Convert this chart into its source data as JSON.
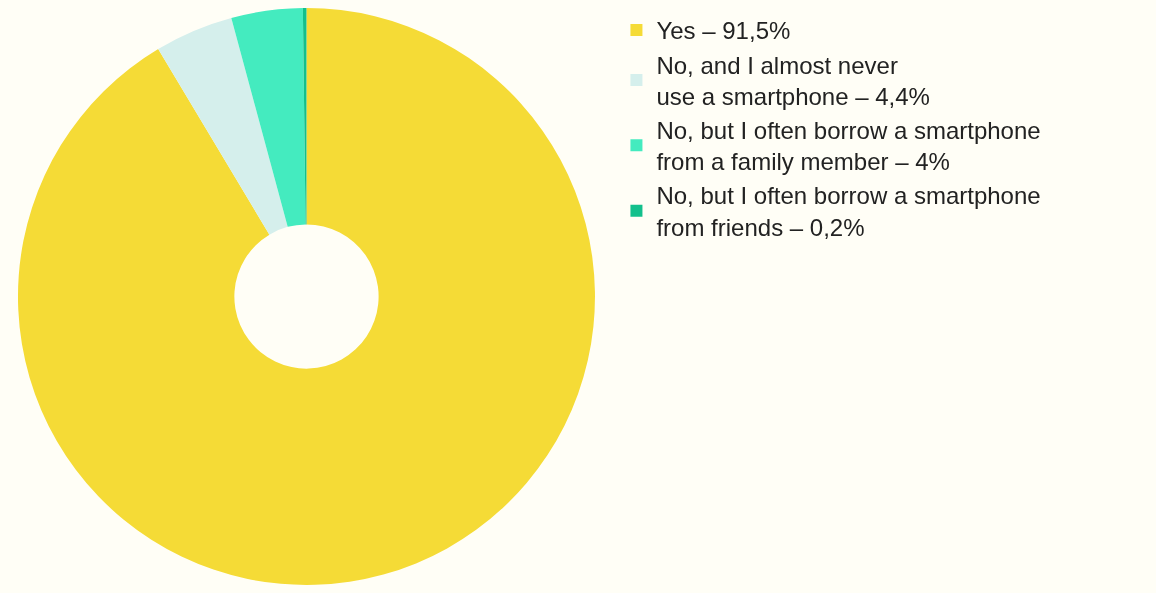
{
  "chart_data": {
    "type": "donut",
    "categories": [
      "Yes – 91,5%",
      "No, and I almost never\nuse a smartphone – 4,4%",
      "No, but I often borrow a smartphone\nfrom a family member – 4%",
      "No, but I often borrow a smartphone\nfrom friends – 0,2%"
    ],
    "values": [
      91.5,
      4.4,
      4,
      0.2
    ],
    "colors": [
      "#f5db36",
      "#d5efec",
      "#44ebbf",
      "#13c08c"
    ],
    "legend": "top right"
  }
}
